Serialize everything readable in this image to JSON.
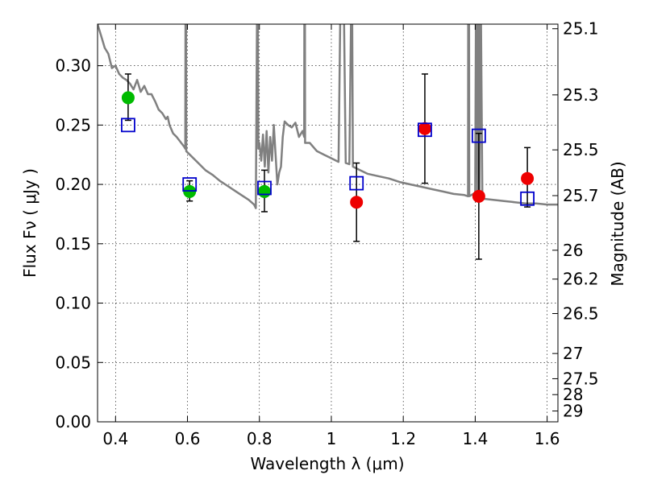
{
  "chart_data": {
    "type": "scatter",
    "xlabel": "Wavelength  λ (μm)",
    "ylabel": "Flux  Fν  ( μJy )",
    "y2label": "Magnitude (AB)",
    "xlim": [
      0.35,
      1.63
    ],
    "ylim": [
      0.0,
      0.335
    ],
    "x_ticks": [
      0.4,
      0.6,
      0.8,
      1.0,
      1.2,
      1.4,
      1.6
    ],
    "x_tick_labels": [
      "0.4",
      "0.6",
      "0.8",
      "1",
      "1.2",
      "1.4",
      "1.6"
    ],
    "y_ticks": [
      0.0,
      0.05,
      0.1,
      0.15,
      0.2,
      0.25,
      0.3
    ],
    "y_tick_labels": [
      "0.00",
      "0.05",
      "0.10",
      "0.15",
      "0.20",
      "0.25",
      "0.30"
    ],
    "mag_ticks": [
      "25.1",
      "25.3",
      "25.5",
      "25.7",
      "26",
      "26.2",
      "26.5",
      "27",
      "27.5",
      "28",
      "29"
    ],
    "grid": true,
    "colors": {
      "model": "#808080",
      "green": "#00bb00",
      "red": "#ee0000",
      "box": "#0000cc",
      "err": "#000000"
    },
    "series": [
      {
        "marker": "circle-green",
        "points": [
          {
            "x": 0.435,
            "y": 0.273,
            "yerr_low": 0.254,
            "yerr_high": 0.293
          },
          {
            "x": 0.606,
            "y": 0.194,
            "yerr_low": 0.186,
            "yerr_high": 0.203
          },
          {
            "x": 0.814,
            "y": 0.194,
            "yerr_low": 0.177,
            "yerr_high": 0.212
          }
        ]
      },
      {
        "marker": "circle-red",
        "points": [
          {
            "x": 1.07,
            "y": 0.185,
            "yerr_low": 0.152,
            "yerr_high": 0.218
          },
          {
            "x": 1.26,
            "y": 0.247,
            "yerr_low": 0.201,
            "yerr_high": 0.293
          },
          {
            "x": 1.41,
            "y": 0.19,
            "yerr_low": 0.137,
            "yerr_high": 0.243
          },
          {
            "x": 1.545,
            "y": 0.205,
            "yerr_low": 0.181,
            "yerr_high": 0.231
          }
        ]
      },
      {
        "marker": "open-square-blue",
        "points": [
          {
            "x": 0.435,
            "y": 0.25
          },
          {
            "x": 0.606,
            "y": 0.2
          },
          {
            "x": 0.814,
            "y": 0.197
          },
          {
            "x": 1.07,
            "y": 0.201
          },
          {
            "x": 1.26,
            "y": 0.246
          },
          {
            "x": 1.41,
            "y": 0.241
          },
          {
            "x": 1.545,
            "y": 0.188
          }
        ]
      },
      {
        "marker": "model-line",
        "points": [
          [
            0.35,
            0.335
          ],
          [
            0.36,
            0.325
          ],
          [
            0.37,
            0.315
          ],
          [
            0.38,
            0.31
          ],
          [
            0.39,
            0.298
          ],
          [
            0.4,
            0.3
          ],
          [
            0.41,
            0.293
          ],
          [
            0.42,
            0.29
          ],
          [
            0.43,
            0.288
          ],
          [
            0.44,
            0.285
          ],
          [
            0.45,
            0.28
          ],
          [
            0.46,
            0.288
          ],
          [
            0.47,
            0.278
          ],
          [
            0.48,
            0.283
          ],
          [
            0.49,
            0.276
          ],
          [
            0.5,
            0.276
          ],
          [
            0.51,
            0.27
          ],
          [
            0.52,
            0.263
          ],
          [
            0.53,
            0.26
          ],
          [
            0.54,
            0.255
          ],
          [
            0.545,
            0.257
          ],
          [
            0.55,
            0.25
          ],
          [
            0.56,
            0.243
          ],
          [
            0.57,
            0.24
          ],
          [
            0.58,
            0.236
          ],
          [
            0.59,
            0.232
          ],
          [
            0.594,
            0.23
          ],
          [
            0.5945,
            0.345
          ],
          [
            0.596,
            0.345
          ],
          [
            0.5965,
            0.228
          ],
          [
            0.61,
            0.224
          ],
          [
            0.63,
            0.218
          ],
          [
            0.65,
            0.212
          ],
          [
            0.67,
            0.208
          ],
          [
            0.69,
            0.203
          ],
          [
            0.71,
            0.199
          ],
          [
            0.73,
            0.195
          ],
          [
            0.75,
            0.191
          ],
          [
            0.77,
            0.187
          ],
          [
            0.785,
            0.183
          ],
          [
            0.79,
            0.18
          ],
          [
            0.7935,
            0.345
          ],
          [
            0.7955,
            0.345
          ],
          [
            0.797,
            0.23
          ],
          [
            0.8,
            0.235
          ],
          [
            0.805,
            0.22
          ],
          [
            0.81,
            0.242
          ],
          [
            0.815,
            0.215
          ],
          [
            0.82,
            0.245
          ],
          [
            0.825,
            0.21
          ],
          [
            0.83,
            0.24
          ],
          [
            0.835,
            0.22
          ],
          [
            0.84,
            0.25
          ],
          [
            0.845,
            0.225
          ],
          [
            0.85,
            0.2
          ],
          [
            0.855,
            0.21
          ],
          [
            0.86,
            0.215
          ],
          [
            0.865,
            0.24
          ],
          [
            0.87,
            0.253
          ],
          [
            0.88,
            0.25
          ],
          [
            0.89,
            0.248
          ],
          [
            0.9,
            0.252
          ],
          [
            0.91,
            0.24
          ],
          [
            0.92,
            0.245
          ],
          [
            0.9245,
            0.24
          ],
          [
            0.925,
            0.345
          ],
          [
            0.9265,
            0.345
          ],
          [
            0.927,
            0.235
          ],
          [
            0.94,
            0.235
          ],
          [
            0.96,
            0.228
          ],
          [
            0.98,
            0.225
          ],
          [
            1.0,
            0.222
          ],
          [
            1.02,
            0.219
          ],
          [
            1.025,
            0.345
          ],
          [
            1.03,
            0.345
          ],
          [
            1.035,
            0.345
          ],
          [
            1.04,
            0.218
          ],
          [
            1.05,
            0.217
          ],
          [
            1.055,
            0.345
          ],
          [
            1.058,
            0.345
          ],
          [
            1.06,
            0.215
          ],
          [
            1.08,
            0.212
          ],
          [
            1.1,
            0.209
          ],
          [
            1.13,
            0.207
          ],
          [
            1.16,
            0.205
          ],
          [
            1.19,
            0.202
          ],
          [
            1.22,
            0.2
          ],
          [
            1.25,
            0.198
          ],
          [
            1.28,
            0.196
          ],
          [
            1.31,
            0.194
          ],
          [
            1.34,
            0.192
          ],
          [
            1.37,
            0.191
          ],
          [
            1.38,
            0.19
          ],
          [
            1.3805,
            0.345
          ],
          [
            1.383,
            0.345
          ],
          [
            1.3835,
            0.19
          ],
          [
            1.4,
            0.193
          ],
          [
            1.402,
            0.345
          ],
          [
            1.404,
            0.345
          ],
          [
            1.406,
            0.195
          ],
          [
            1.408,
            0.345
          ],
          [
            1.41,
            0.345
          ],
          [
            1.412,
            0.19
          ],
          [
            1.414,
            0.345
          ],
          [
            1.416,
            0.345
          ],
          [
            1.42,
            0.188
          ],
          [
            1.45,
            0.187
          ],
          [
            1.48,
            0.186
          ],
          [
            1.51,
            0.185
          ],
          [
            1.54,
            0.184
          ],
          [
            1.57,
            0.184
          ],
          [
            1.6,
            0.183
          ],
          [
            1.63,
            0.183
          ]
        ]
      }
    ]
  }
}
